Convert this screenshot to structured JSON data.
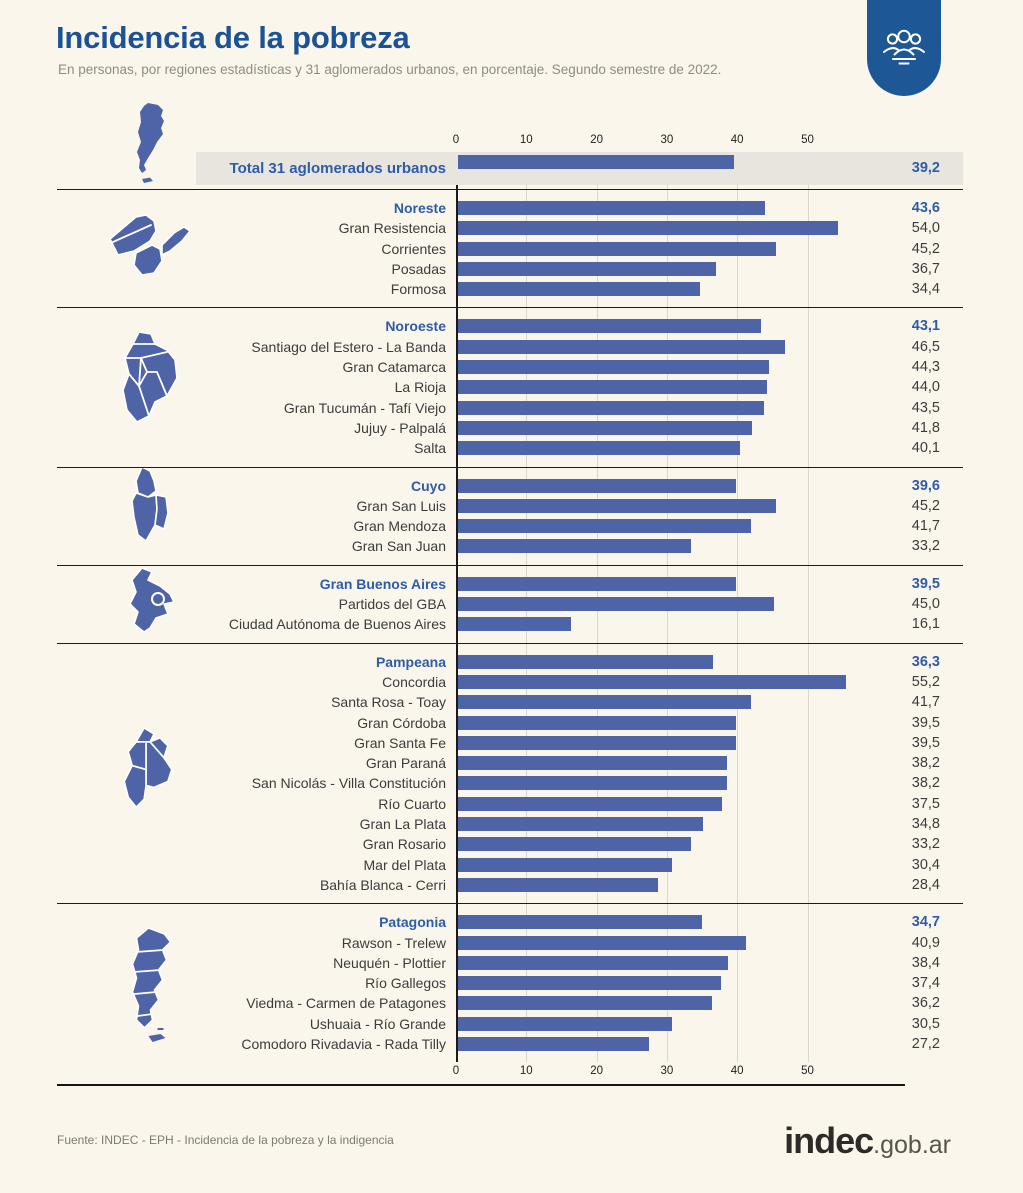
{
  "header": {
    "title": "Incidencia de la pobreza",
    "subtitle": "En personas, por regiones estadísticas y 31 aglomerados urbanos, en porcentaje. Segundo semestre de 2022.",
    "badge_icon": "people-group-icon"
  },
  "colors": {
    "background": "#faf6ec",
    "bar_blue": "#4e64a6",
    "accent_blue": "#2e5ca8",
    "title_blue": "#1b5294",
    "badge_blue": "#1d5795",
    "band_gray": "#e8e5df",
    "text_dark": "#3c3c3c"
  },
  "chart_data": {
    "type": "bar",
    "orientation": "horizontal",
    "unit": "percent",
    "xlim": [
      0,
      60
    ],
    "axis_ticks": [
      0,
      10,
      20,
      30,
      40,
      50
    ],
    "grid": true,
    "total_map_icon": "map-argentina-icon",
    "total": {
      "label": "Total 31 aglomerados urbanos",
      "value": 39.2,
      "display": "39,2"
    },
    "regions": [
      {
        "name": "Noreste",
        "value": 43.6,
        "display": "43,6",
        "map_icon": "map-noreste-icon",
        "cities": [
          {
            "label": "Gran Resistencia",
            "value": 54.0,
            "display": "54,0"
          },
          {
            "label": "Corrientes",
            "value": 45.2,
            "display": "45,2"
          },
          {
            "label": "Posadas",
            "value": 36.7,
            "display": "36,7"
          },
          {
            "label": "Formosa",
            "value": 34.4,
            "display": "34,4"
          }
        ]
      },
      {
        "name": "Noroeste",
        "value": 43.1,
        "display": "43,1",
        "map_icon": "map-noroeste-icon",
        "cities": [
          {
            "label": "Santiago del Estero - La Banda",
            "value": 46.5,
            "display": "46,5"
          },
          {
            "label": "Gran Catamarca",
            "value": 44.3,
            "display": "44,3"
          },
          {
            "label": "La Rioja",
            "value": 44.0,
            "display": "44,0"
          },
          {
            "label": "Gran Tucumán - Tafí Viejo",
            "value": 43.5,
            "display": "43,5"
          },
          {
            "label": "Jujuy - Palpalá",
            "value": 41.8,
            "display": "41,8"
          },
          {
            "label": "Salta",
            "value": 40.1,
            "display": "40,1"
          }
        ]
      },
      {
        "name": "Cuyo",
        "value": 39.6,
        "display": "39,6",
        "map_icon": "map-cuyo-icon",
        "cities": [
          {
            "label": "Gran San Luis",
            "value": 45.2,
            "display": "45,2"
          },
          {
            "label": "Gran Mendoza",
            "value": 41.7,
            "display": "41,7"
          },
          {
            "label": "Gran San Juan",
            "value": 33.2,
            "display": "33,2"
          }
        ]
      },
      {
        "name": "Gran Buenos Aires",
        "value": 39.5,
        "display": "39,5",
        "map_icon": "map-gran-buenos-aires-icon",
        "cities": [
          {
            "label": "Partidos del GBA",
            "value": 45.0,
            "display": "45,0"
          },
          {
            "label": "Ciudad Autónoma de Buenos Aires",
            "value": 16.1,
            "display": "16,1"
          }
        ]
      },
      {
        "name": "Pampeana",
        "value": 36.3,
        "display": "36,3",
        "map_icon": "map-pampeana-icon",
        "cities": [
          {
            "label": "Concordia",
            "value": 55.2,
            "display": "55,2"
          },
          {
            "label": "Santa Rosa - Toay",
            "value": 41.7,
            "display": "41,7"
          },
          {
            "label": "Gran Córdoba",
            "value": 39.5,
            "display": "39,5"
          },
          {
            "label": "Gran Santa Fe",
            "value": 39.5,
            "display": "39,5"
          },
          {
            "label": "Gran Paraná",
            "value": 38.2,
            "display": "38,2"
          },
          {
            "label": "San Nicolás - Villa Constitución",
            "value": 38.2,
            "display": "38,2"
          },
          {
            "label": "Río Cuarto",
            "value": 37.5,
            "display": "37,5"
          },
          {
            "label": "Gran La Plata",
            "value": 34.8,
            "display": "34,8"
          },
          {
            "label": "Gran Rosario",
            "value": 33.2,
            "display": "33,2"
          },
          {
            "label": "Mar del Plata",
            "value": 30.4,
            "display": "30,4"
          },
          {
            "label": "Bahía Blanca - Cerri",
            "value": 28.4,
            "display": "28,4"
          }
        ]
      },
      {
        "name": "Patagonia",
        "value": 34.7,
        "display": "34,7",
        "map_icon": "map-patagonia-icon",
        "cities": [
          {
            "label": "Rawson - Trelew",
            "value": 40.9,
            "display": "40,9"
          },
          {
            "label": "Neuquén - Plottier",
            "value": 38.4,
            "display": "38,4"
          },
          {
            "label": "Río Gallegos",
            "value": 37.4,
            "display": "37,4"
          },
          {
            "label": "Viedma - Carmen de Patagones",
            "value": 36.2,
            "display": "36,2"
          },
          {
            "label": "Ushuaia - Río Grande",
            "value": 30.5,
            "display": "30,5"
          },
          {
            "label": "Comodoro Rivadavia - Rada Tilly",
            "value": 27.2,
            "display": "27,2"
          }
        ]
      }
    ]
  },
  "footer": {
    "source": "Fuente: INDEC - EPH - Incidencia de la pobreza y la indigencia",
    "logo_main": "indec",
    "logo_suffix": ".gob.ar"
  }
}
